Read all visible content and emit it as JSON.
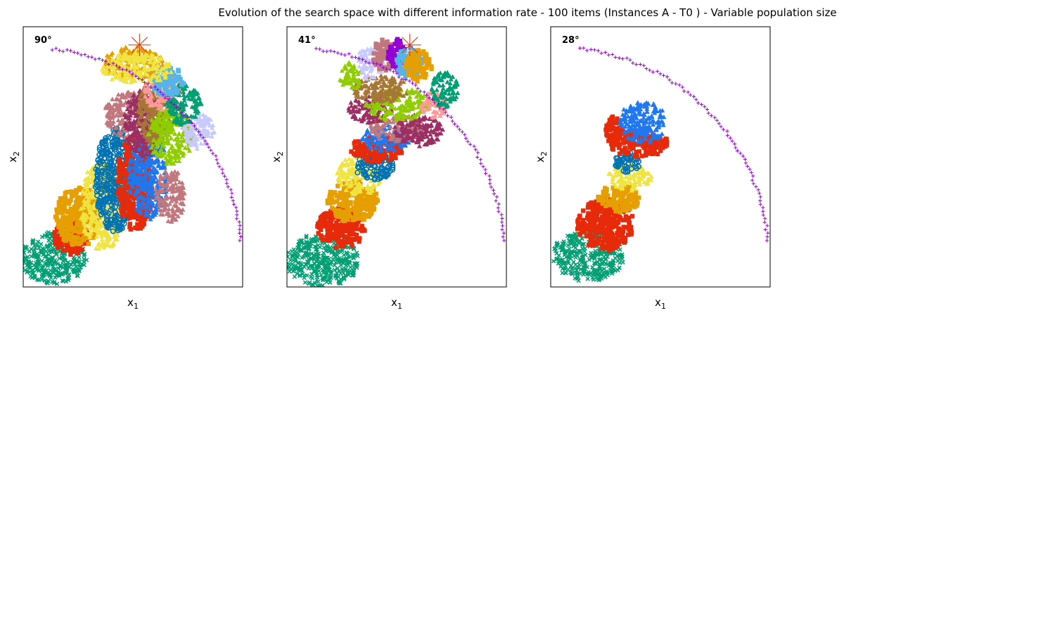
{
  "figure": {
    "title": "Evolution of the search space with different information rate - 100 items (Instances A - T0 ) - Variable population size"
  },
  "colors": {
    "green": "#009e73",
    "red": "#e62a0a",
    "orange": "#e69f00",
    "yellow": "#f0e442",
    "blue": "#0072b2",
    "brightblue": "#1f78f0",
    "rose": "#c0787e",
    "plum": "#9b2f63",
    "olive": "#a67635",
    "lime": "#8fcc00",
    "lavender": "#c9c9ff",
    "pink": "#ff9999",
    "skyblue": "#56b4e9",
    "teal": "#0aa3a3",
    "violet": "#9400d3",
    "front": "#9400d3",
    "star": "#e62a0a"
  },
  "chart_data": [
    {
      "type": "scatter",
      "angle_label": "90°",
      "xlabel": "x",
      "xlabel_sub": "1",
      "ylabel": "x",
      "ylabel_sub": "2",
      "grid": false,
      "xlim": [
        0,
        100
      ],
      "ylim": [
        0,
        100
      ],
      "pareto_front": {
        "marker": "plus",
        "color": "front"
      },
      "reference_point": {
        "marker": "star",
        "x": 53,
        "y": 93
      },
      "clusters": [
        {
          "marker": "x",
          "color": "green",
          "x": 14,
          "y": 11,
          "rx": 15,
          "ry": 10
        },
        {
          "marker": "square",
          "color": "red",
          "x": 22,
          "y": 19,
          "rx": 8,
          "ry": 7
        },
        {
          "marker": "square",
          "color": "orange",
          "x": 25,
          "y": 27,
          "rx": 10,
          "ry": 12
        },
        {
          "marker": "triangle",
          "color": "yellow",
          "x": 36,
          "y": 31,
          "rx": 10,
          "ry": 17
        },
        {
          "marker": "circle",
          "color": "blue",
          "x": 42,
          "y": 41,
          "rx": 9,
          "ry": 20
        },
        {
          "marker": "square",
          "color": "red",
          "x": 51,
          "y": 40,
          "rx": 8,
          "ry": 19
        },
        {
          "marker": "triangle",
          "color": "brightblue",
          "x": 57,
          "y": 43,
          "rx": 9,
          "ry": 17
        },
        {
          "marker": "triangle",
          "color": "rose",
          "x": 67,
          "y": 35,
          "rx": 7,
          "ry": 10
        },
        {
          "marker": "triangle",
          "color": "rose",
          "x": 48,
          "y": 66,
          "rx": 11,
          "ry": 9
        },
        {
          "marker": "triangle",
          "color": "plum",
          "x": 55,
          "y": 63,
          "rx": 9,
          "ry": 13
        },
        {
          "marker": "triangle",
          "color": "olive",
          "x": 60,
          "y": 67,
          "rx": 8,
          "ry": 12
        },
        {
          "marker": "triangle",
          "color": "lime",
          "x": 67,
          "y": 58,
          "rx": 10,
          "ry": 11
        },
        {
          "marker": "triangle",
          "color": "lavender",
          "x": 80,
          "y": 60,
          "rx": 7,
          "ry": 7
        },
        {
          "marker": "triangle",
          "color": "pink",
          "x": 64,
          "y": 75,
          "rx": 9,
          "ry": 7
        },
        {
          "marker": "triangle",
          "color": "green",
          "x": 73,
          "y": 70,
          "rx": 8,
          "ry": 8
        },
        {
          "marker": "square",
          "color": "skyblue",
          "x": 66,
          "y": 79,
          "rx": 7,
          "ry": 6
        },
        {
          "marker": "triangle",
          "color": "orange",
          "x": 50,
          "y": 86,
          "rx": 14,
          "ry": 6
        },
        {
          "marker": "triangle",
          "color": "yellow",
          "x": 52,
          "y": 84,
          "rx": 16,
          "ry": 6
        }
      ]
    },
    {
      "type": "scatter",
      "angle_label": "41°",
      "xlabel": "x",
      "xlabel_sub": "1",
      "ylabel": "x",
      "ylabel_sub": "2",
      "grid": false,
      "xlim": [
        0,
        100
      ],
      "ylim": [
        0,
        100
      ],
      "pareto_front": {
        "marker": "plus",
        "color": "front"
      },
      "reference_point": {
        "marker": "star",
        "x": 56,
        "y": 93
      },
      "clusters": [
        {
          "marker": "x",
          "color": "green",
          "x": 16,
          "y": 10,
          "rx": 17,
          "ry": 10
        },
        {
          "marker": "square",
          "color": "red",
          "x": 25,
          "y": 23,
          "rx": 11,
          "ry": 8
        },
        {
          "marker": "square",
          "color": "orange",
          "x": 30,
          "y": 33,
          "rx": 12,
          "ry": 8
        },
        {
          "marker": "triangle",
          "color": "yellow",
          "x": 33,
          "y": 43,
          "rx": 10,
          "ry": 8
        },
        {
          "marker": "circle",
          "color": "blue",
          "x": 40,
          "y": 46,
          "rx": 9,
          "ry": 5
        },
        {
          "marker": "square",
          "color": "red",
          "x": 41,
          "y": 53,
          "rx": 12,
          "ry": 5
        },
        {
          "marker": "triangle",
          "color": "brightblue",
          "x": 45,
          "y": 57,
          "rx": 11,
          "ry": 5
        },
        {
          "marker": "triangle",
          "color": "rose",
          "x": 50,
          "y": 61,
          "rx": 13,
          "ry": 5
        },
        {
          "marker": "triangle",
          "color": "plum",
          "x": 60,
          "y": 60,
          "rx": 11,
          "ry": 6
        },
        {
          "marker": "triangle",
          "color": "plum",
          "x": 38,
          "y": 68,
          "rx": 10,
          "ry": 5
        },
        {
          "marker": "triangle",
          "color": "lime",
          "x": 50,
          "y": 70,
          "rx": 15,
          "ry": 6
        },
        {
          "marker": "triangle",
          "color": "olive",
          "x": 42,
          "y": 76,
          "rx": 13,
          "ry": 5
        },
        {
          "marker": "triangle",
          "color": "lime",
          "x": 29,
          "y": 81,
          "rx": 5,
          "ry": 5
        },
        {
          "marker": "triangle",
          "color": "pink",
          "x": 67,
          "y": 70,
          "rx": 6,
          "ry": 5
        },
        {
          "marker": "triangle",
          "color": "lavender",
          "x": 38,
          "y": 86,
          "rx": 6,
          "ry": 6
        },
        {
          "marker": "square",
          "color": "rose",
          "x": 44,
          "y": 89,
          "rx": 5,
          "ry": 6
        },
        {
          "marker": "square",
          "color": "violet",
          "x": 50,
          "y": 89,
          "rx": 4,
          "ry": 6
        },
        {
          "marker": "square",
          "color": "skyblue",
          "x": 56,
          "y": 86,
          "rx": 6,
          "ry": 6
        },
        {
          "marker": "square",
          "color": "orange",
          "x": 60,
          "y": 85,
          "rx": 6,
          "ry": 6
        },
        {
          "marker": "triangle",
          "color": "green",
          "x": 72,
          "y": 76,
          "rx": 6,
          "ry": 7
        }
      ]
    },
    {
      "type": "scatter",
      "angle_label": "28°",
      "xlabel": "x",
      "xlabel_sub": "1",
      "ylabel": "x",
      "ylabel_sub": "2",
      "grid": false,
      "xlim": [
        0,
        100
      ],
      "ylim": [
        0,
        100
      ],
      "pareto_front": {
        "marker": "plus",
        "color": "front"
      },
      "clusters": [
        {
          "marker": "x",
          "color": "green",
          "x": 17,
          "y": 12,
          "rx": 16,
          "ry": 10
        },
        {
          "marker": "square",
          "color": "red",
          "x": 25,
          "y": 24,
          "rx": 13,
          "ry": 10
        },
        {
          "marker": "square",
          "color": "orange",
          "x": 31,
          "y": 34,
          "rx": 10,
          "ry": 5
        },
        {
          "marker": "triangle",
          "color": "yellow",
          "x": 36,
          "y": 42,
          "rx": 10,
          "ry": 5
        },
        {
          "marker": "circle",
          "color": "blue",
          "x": 35,
          "y": 48,
          "rx": 6,
          "ry": 4
        },
        {
          "marker": "square",
          "color": "red",
          "x": 40,
          "y": 55,
          "rx": 14,
          "ry": 5
        },
        {
          "marker": "square",
          "color": "red",
          "x": 29,
          "y": 61,
          "rx": 4,
          "ry": 5
        },
        {
          "marker": "triangle",
          "color": "brightblue",
          "x": 42,
          "y": 63,
          "rx": 11,
          "ry": 8
        }
      ]
    }
  ]
}
